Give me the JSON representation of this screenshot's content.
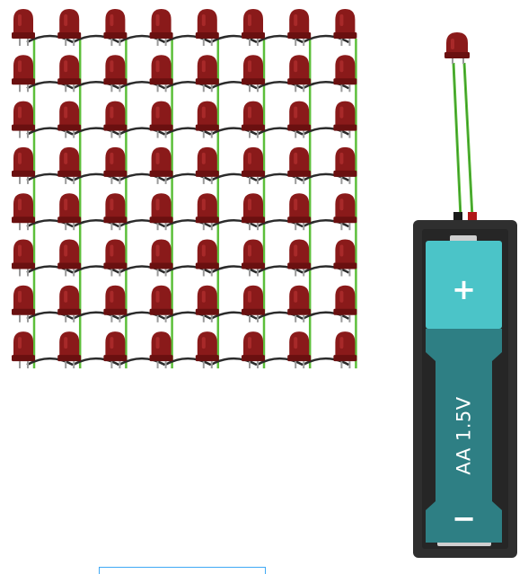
{
  "battery": {
    "label": "AA 1.5V",
    "plus_symbol": "+",
    "minus_symbol": "−"
  },
  "colors": {
    "led_body": "#8a1a1a",
    "led_highlight": "#b53030",
    "led_rim": "#6a1010",
    "lead": "#9a9a9a",
    "wire_green": "#5cbf3a",
    "wire_black": "#2b2b2b",
    "battery_case": "#2f2f2f",
    "battery_top": "#4bc4c8",
    "battery_bottom": "#2e7f84",
    "selection": "#3fa9f5"
  },
  "matrix": {
    "rows": 8,
    "cols": 8
  },
  "icons": [
    "led-icon",
    "battery-icon",
    "wire-icon"
  ]
}
